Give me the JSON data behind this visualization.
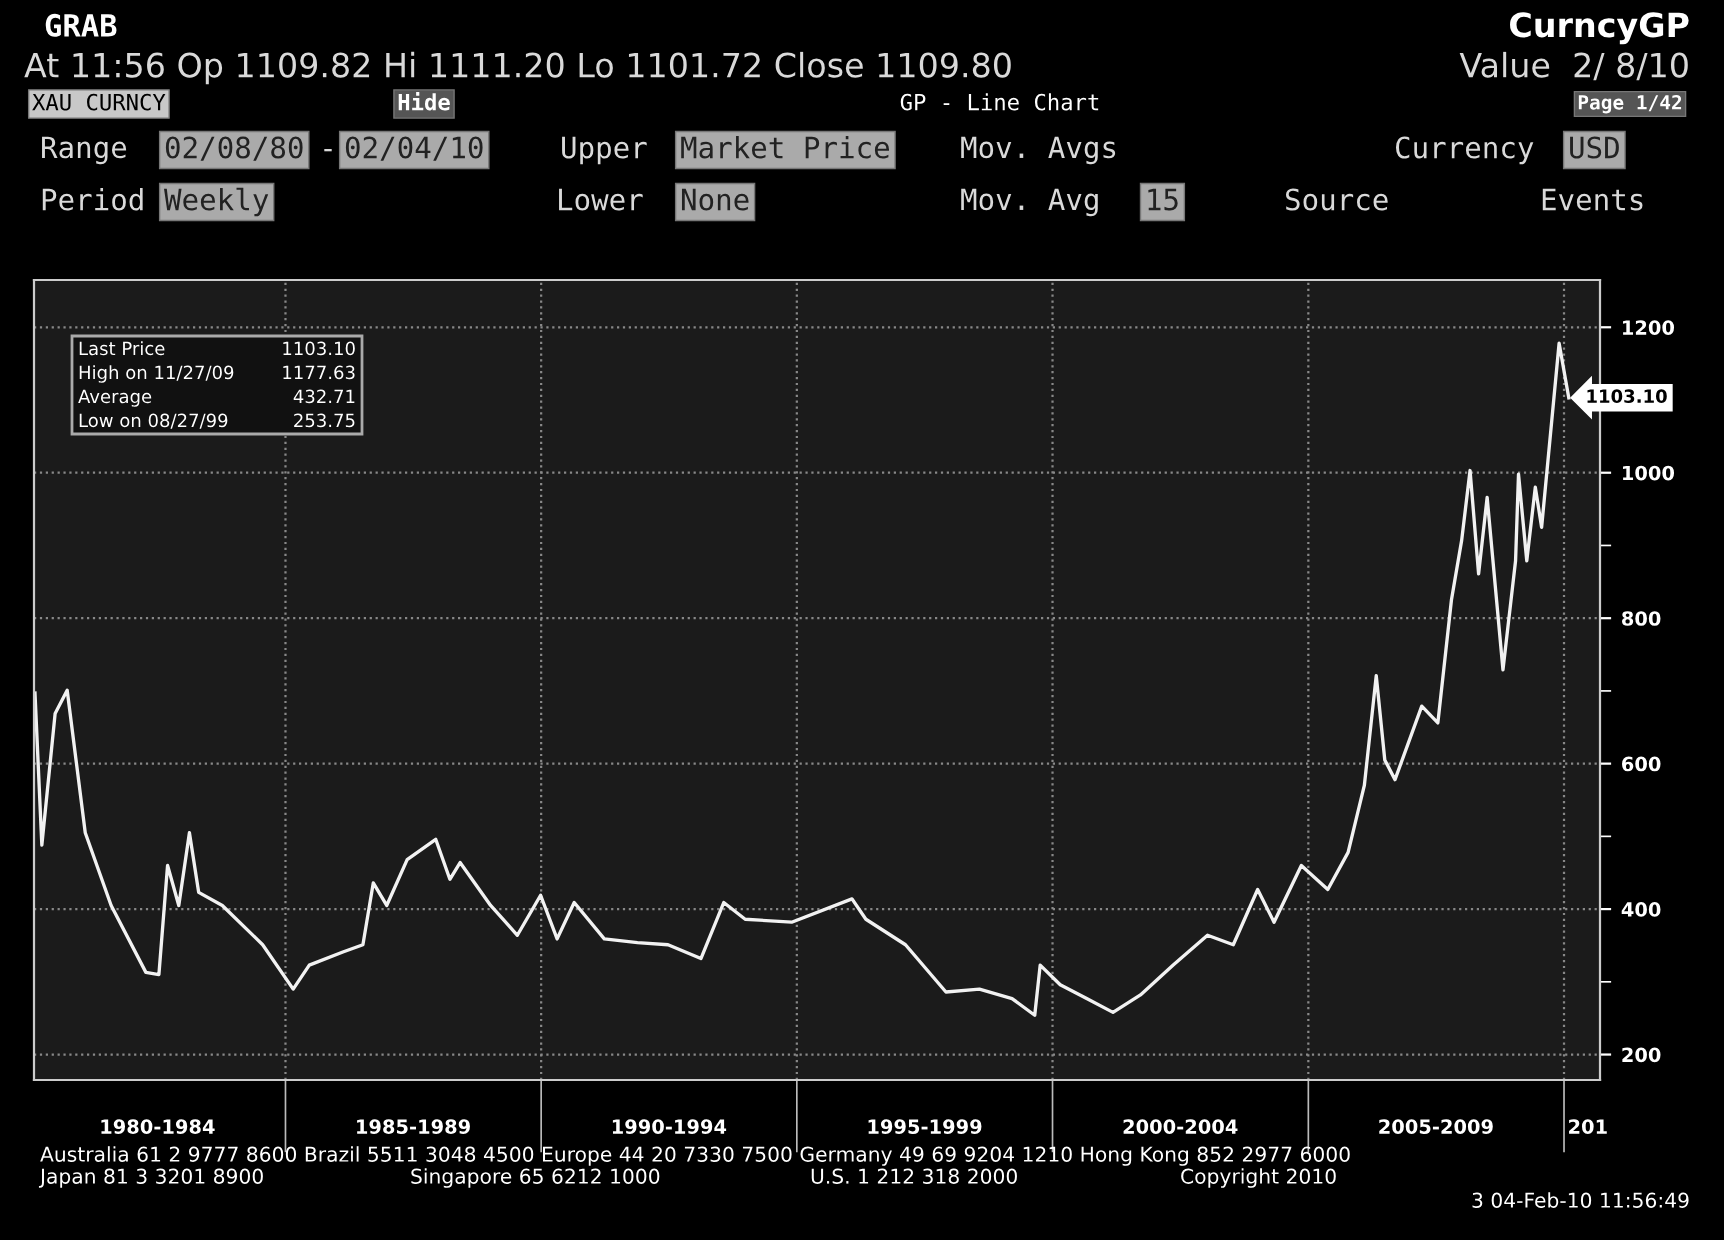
{
  "chart_data": {
    "type": "line",
    "x": [
      "1980-02-08",
      "1980-03-28",
      "1980-07-01",
      "1980-09-25",
      "1981-02-01",
      "1981-08-05",
      "1982-04-10",
      "1982-07-12",
      "1982-09-12",
      "1982-12-01",
      "1983-02-15",
      "1983-04-22",
      "1983-10-08",
      "1984-07-22",
      "1985-02-25",
      "1985-06-20",
      "1986-02-15",
      "1986-07-08",
      "1986-09-20",
      "1986-12-25",
      "1987-05-20",
      "1987-12-10",
      "1988-03-20",
      "1988-06-01",
      "1989-01-05",
      "1989-07-15",
      "1989-12-28",
      "1990-04-25",
      "1990-08-25",
      "1991-03-28",
      "1991-11-20",
      "1992-06-25",
      "1993-02-15",
      "1993-07-28",
      "1993-12-28",
      "1994-11-25",
      "1996-01-30",
      "1996-05-08",
      "1997-02-15",
      "1997-12-01",
      "1998-07-28",
      "1999-03-18",
      "1999-08-27",
      "1999-10-05",
      "2000-02-25",
      "2000-09-01",
      "2001-03-08",
      "2001-09-20",
      "2002-05-12",
      "2003-01-12",
      "2003-07-15",
      "2004-01-05",
      "2004-05-01",
      "2004-11-12",
      "2005-05-20",
      "2005-10-12",
      "2006-02-05",
      "2006-05-01",
      "2006-07-01",
      "2006-09-12",
      "2007-03-22",
      "2007-07-15",
      "2007-10-20",
      "2008-01-01",
      "2008-03-01",
      "2008-05-01",
      "2008-07-01",
      "2008-10-22",
      "2009-01-20",
      "2009-02-10",
      "2009-04-10",
      "2009-06-10",
      "2009-07-25",
      "2009-11-27",
      "2010-02-04"
    ],
    "series": [
      {
        "color": "#f2f2f2",
        "values": [
          697,
          488,
          669,
          701,
          505,
          405,
          313,
          310,
          460,
          405,
          505,
          423,
          405,
          351,
          290,
          323,
          341,
          351,
          436,
          405,
          468,
          496,
          441,
          464,
          405,
          364,
          419,
          359,
          409,
          359,
          354,
          351,
          332,
          409,
          386,
          382,
          414,
          386,
          351,
          286,
          290,
          277,
          254,
          323,
          296,
          277,
          258,
          282,
          323,
          364,
          351,
          427,
          382,
          460,
          427,
          478,
          570,
          721,
          605,
          578,
          679,
          656,
          825,
          907,
          1003,
          861,
          966,
          729,
          879,
          998,
          879,
          980,
          925,
          1178,
          1103
        ]
      }
    ],
    "xlim": [
      "1980-02-01",
      "2010-09-15"
    ],
    "xticks": [
      {
        "value": "1982-07-01",
        "label": "1980-1984"
      },
      {
        "value": "1987-07-01",
        "label": "1985-1989"
      },
      {
        "value": "1992-07-01",
        "label": "1990-1994"
      },
      {
        "value": "1997-07-01",
        "label": "1995-1999"
      },
      {
        "value": "2002-07-01",
        "label": "2000-2004"
      },
      {
        "value": "2007-07-01",
        "label": "2005-2009"
      },
      {
        "value": "2010-06-20",
        "label": "201"
      },
      {
        "value": "1985-01-01",
        "label": null
      },
      {
        "value": "1990-01-01",
        "label": null
      },
      {
        "value": "1995-01-01",
        "label": null
      },
      {
        "value": "2000-01-01",
        "label": null
      },
      {
        "value": "2005-01-01",
        "label": null
      },
      {
        "value": "2010-01-01",
        "label": null
      }
    ],
    "ylim": [
      165,
      1265
    ],
    "yticks": [
      200,
      400,
      600,
      800,
      1000,
      1200,
      {
        "value": 300,
        "label": null
      },
      {
        "value": 500,
        "label": null
      },
      {
        "value": 700,
        "label": null
      },
      {
        "value": 900,
        "label": null
      },
      {
        "value": 1100,
        "label": null
      }
    ],
    "grid": true,
    "marker": "none",
    "line_style": "solid",
    "annotations": [
      "GRAB",
      "CurncyGP",
      "At 11:56 Op 1109.82 Hi 1111.20 Lo 1101.72 Close 1109.80",
      "Value  2/ 8/10",
      "XAU CURNCY",
      "Hide",
      "GP - Line Chart",
      "Page 1/42",
      "Range",
      "02/08/80",
      "-",
      "02/04/10",
      "Upper",
      "Market Price",
      "Mov. Avgs",
      "Currency",
      "USD",
      "Period",
      "Weekly",
      "Lower",
      "None",
      "Mov. Avg",
      "15",
      "Source",
      "Events",
      "Last Price",
      "1103.10",
      "High on 11/27/09",
      "1177.63",
      "Average",
      "432.71",
      "Low on 08/27/99",
      "253.75",
      "Australia 61 2 9777 8600 Brazil 5511 3048 4500 Europe 44 20 7330 7500 Germany 49 69 9204 1210 Hong Kong 852 2977 6000",
      "Japan 81 3 3201 8900",
      "Singapore 65 6212 1000",
      "U.S. 1 212 318 2000",
      "Copyright 2010",
      "3 04-Feb-10 11:56:49",
      {
        "text": "1103.10",
        "x": "2010-02-04",
        "y": 1103.1
      }
    ]
  }
}
